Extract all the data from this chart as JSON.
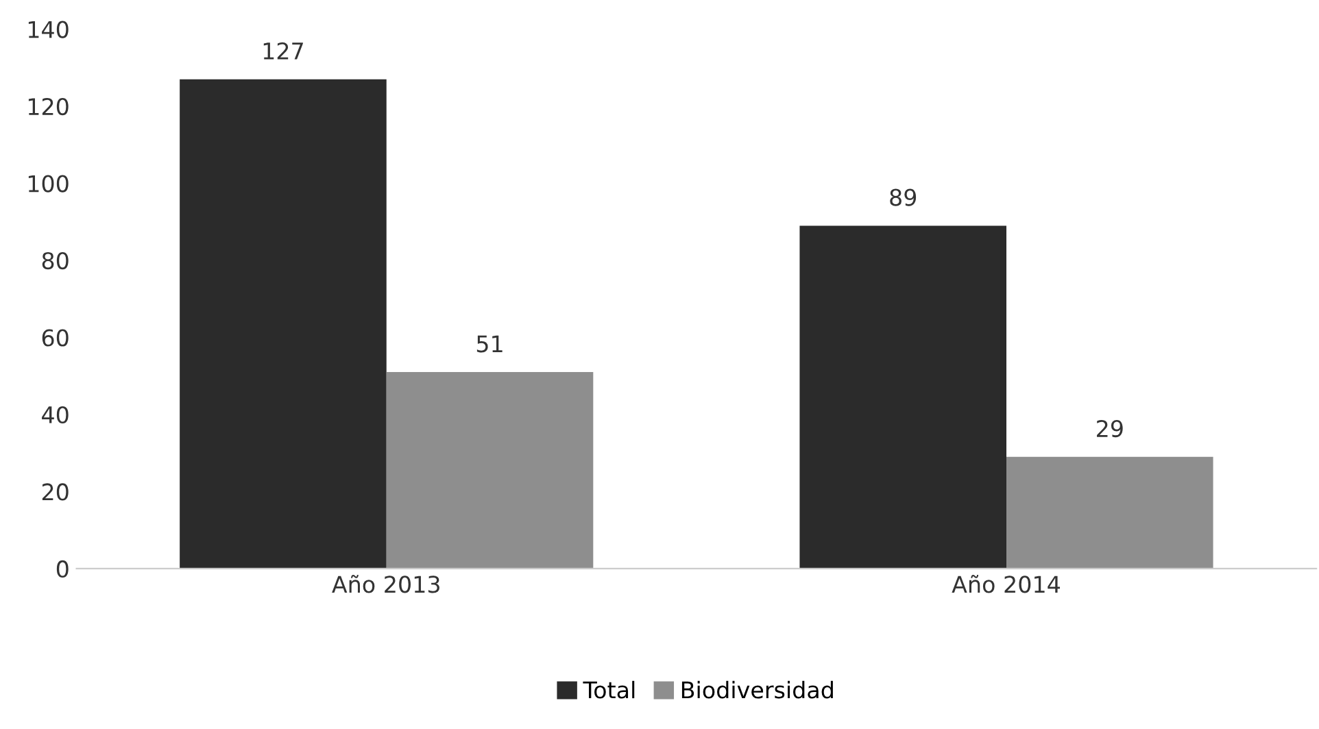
{
  "chart_data": {
    "type": "bar",
    "categories": [
      "Año 2013",
      "Año 2014"
    ],
    "series": [
      {
        "name": "Total",
        "color": "#2b2b2b",
        "values": [
          127,
          89
        ]
      },
      {
        "name": "Biodiversidad",
        "color": "#8e8e8e",
        "values": [
          51,
          29
        ]
      }
    ],
    "ylim": [
      0,
      140
    ],
    "yticks": [
      0,
      20,
      40,
      60,
      80,
      100,
      120,
      140
    ],
    "grid": false,
    "legend": "bottom",
    "data_labels": true
  }
}
